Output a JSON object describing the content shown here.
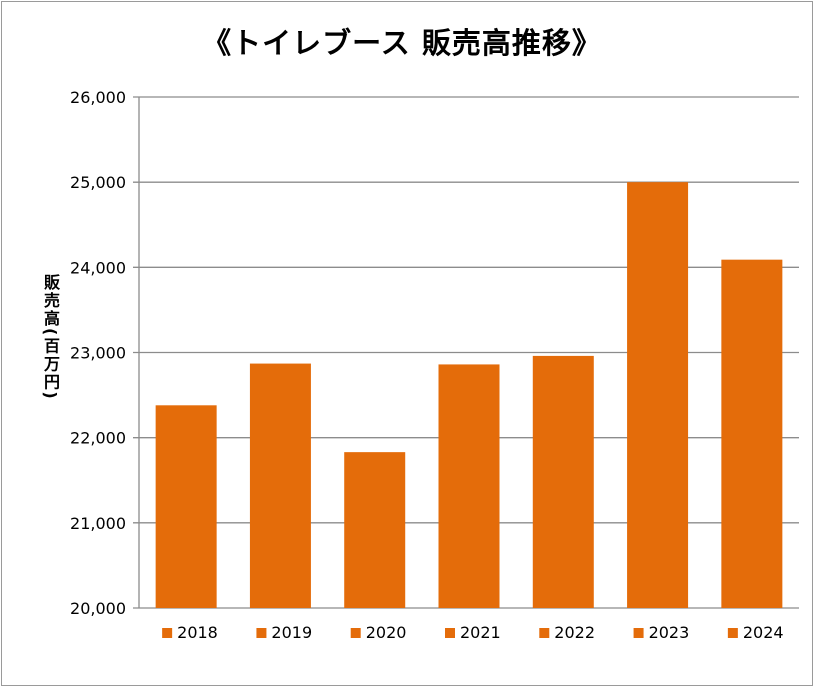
{
  "chart_data": {
    "type": "bar",
    "title": "《トイレブース 販売高推移》",
    "xlabel": "",
    "ylabel": "販売高(百万円)",
    "categories": [
      "2018",
      "2019",
      "2020",
      "2021",
      "2022",
      "2023",
      "2024"
    ],
    "values": [
      22380,
      22870,
      21830,
      22860,
      22960,
      25000,
      24090
    ],
    "ylim": [
      20000,
      26000
    ],
    "yticks": [
      20000,
      21000,
      22000,
      23000,
      24000,
      25000,
      26000
    ],
    "ytick_labels": [
      "20,000",
      "21,000",
      "22,000",
      "23,000",
      "24,000",
      "25,000",
      "26,000"
    ],
    "grid": true,
    "legend_placement": "bottom",
    "bar_color": "#e46c0a",
    "grid_color": "#8c8c8c"
  }
}
